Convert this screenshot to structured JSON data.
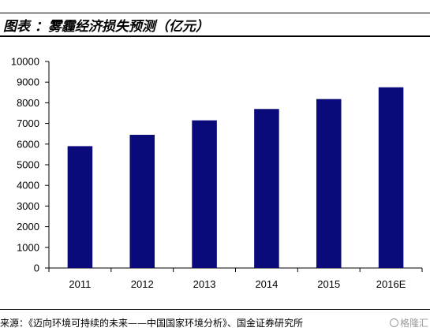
{
  "header": {
    "title": "图表 ：雾霾经济损失预测（亿元）"
  },
  "chart_data": {
    "type": "bar",
    "title": "图表 ：雾霾经济损失预测（亿元）",
    "categories": [
      "2011",
      "2012",
      "2013",
      "2014",
      "2015",
      "2016E"
    ],
    "values": [
      5900,
      6450,
      7150,
      7700,
      8180,
      8750
    ],
    "ylim": [
      0,
      10000
    ],
    "yticks": [
      0,
      1000,
      2000,
      3000,
      4000,
      5000,
      6000,
      7000,
      8000,
      9000,
      10000
    ],
    "xlabel": "",
    "ylabel": "",
    "grid": false,
    "bar_color": "#0a0a7a"
  },
  "footer": {
    "source": "来源：《迈向环境可持续的未来——中国国家环境分析》、国金证券研究所",
    "watermark": "格隆汇"
  }
}
